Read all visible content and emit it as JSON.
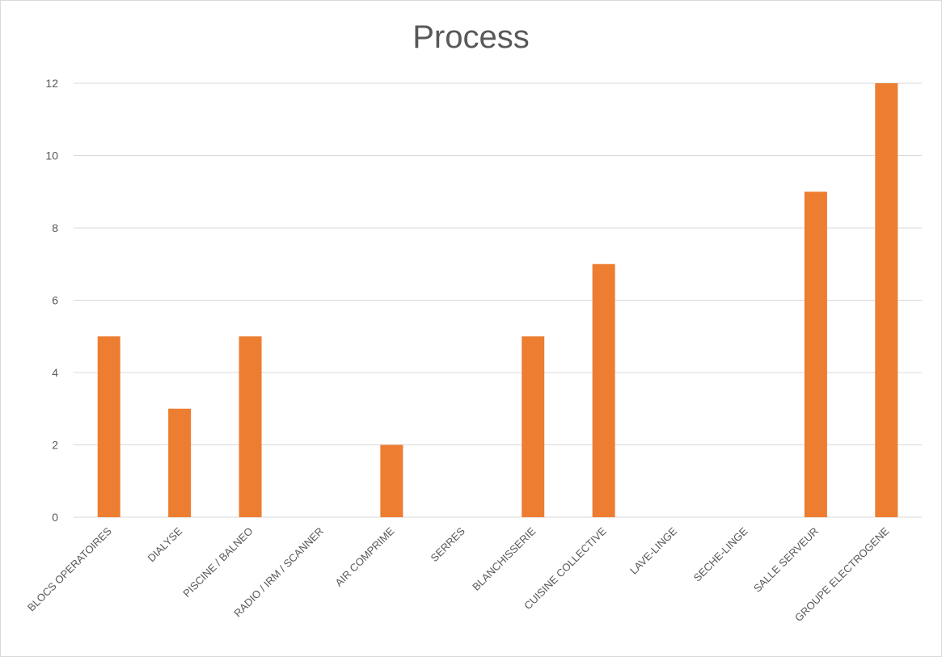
{
  "chart_data": {
    "type": "bar",
    "title": "Process",
    "xlabel": "",
    "ylabel": "",
    "ylim": [
      0,
      12
    ],
    "yticks": [
      0,
      2,
      4,
      6,
      8,
      10,
      12
    ],
    "grid": true,
    "legend": "none",
    "bar_color": "#ED7D31",
    "categories": [
      "BLOCS OPERATOIRES",
      "DIALYSE",
      "PISCINE / BALNEO",
      "RADIO / IRM / SCANNER",
      "AIR COMPRIME",
      "SERRES",
      "BLANCHISSERIE",
      "CUISINE COLLECTIVE",
      "LAVE-LINGE",
      "SECHE-LINGE",
      "SALLE SERVEUR",
      "GROUPE ELECTROGENE"
    ],
    "values": [
      5,
      3,
      5,
      0,
      2,
      0,
      5,
      7,
      0,
      0,
      9,
      12
    ]
  }
}
